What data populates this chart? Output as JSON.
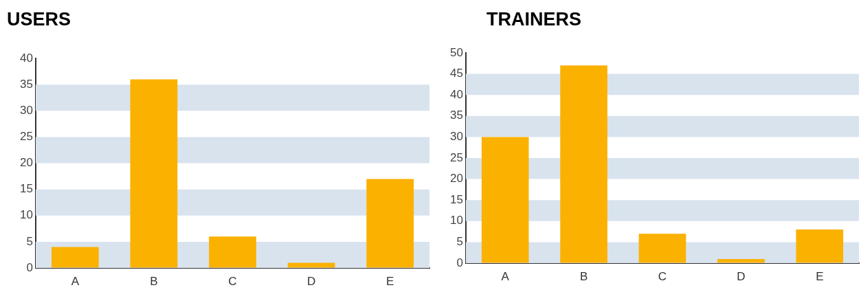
{
  "chart_data": [
    {
      "type": "bar",
      "title": "USERS",
      "categories": [
        "A",
        "B",
        "C",
        "D",
        "E"
      ],
      "values": [
        4,
        36,
        6,
        1,
        17
      ],
      "color": "#fbb100",
      "ylim": [
        0,
        40
      ],
      "yticks": [
        0,
        5,
        10,
        15,
        20,
        25,
        30,
        35,
        40
      ],
      "bands": [
        {
          "axis": "y",
          "from": 0,
          "to": 5,
          "color": "#d9e3ee"
        },
        {
          "axis": "y",
          "from": 10,
          "to": 15,
          "color": "#d9e3ee"
        },
        {
          "axis": "y",
          "from": 20,
          "to": 25,
          "color": "#d9e3ee"
        },
        {
          "axis": "y",
          "from": 30,
          "to": 35,
          "color": "#d9e3ee"
        }
      ]
    },
    {
      "type": "bar",
      "title": "TRAINERS",
      "categories": [
        "A",
        "B",
        "C",
        "D",
        "E"
      ],
      "values": [
        30,
        47,
        7,
        1,
        8
      ],
      "color": "#fbb100",
      "ylim": [
        0,
        50
      ],
      "yticks": [
        0,
        5,
        10,
        15,
        20,
        25,
        30,
        35,
        40,
        45,
        50
      ],
      "bands": [
        {
          "axis": "y",
          "from": 0,
          "to": 5,
          "color": "#d9e3ee"
        },
        {
          "axis": "y",
          "from": 10,
          "to": 15,
          "color": "#d9e3ee"
        },
        {
          "axis": "y",
          "from": 20,
          "to": 25,
          "color": "#d9e3ee"
        },
        {
          "axis": "y",
          "from": 30,
          "to": 35,
          "color": "#d9e3ee"
        },
        {
          "axis": "y",
          "from": 40,
          "to": 45,
          "color": "#d9e3ee"
        }
      ]
    }
  ]
}
